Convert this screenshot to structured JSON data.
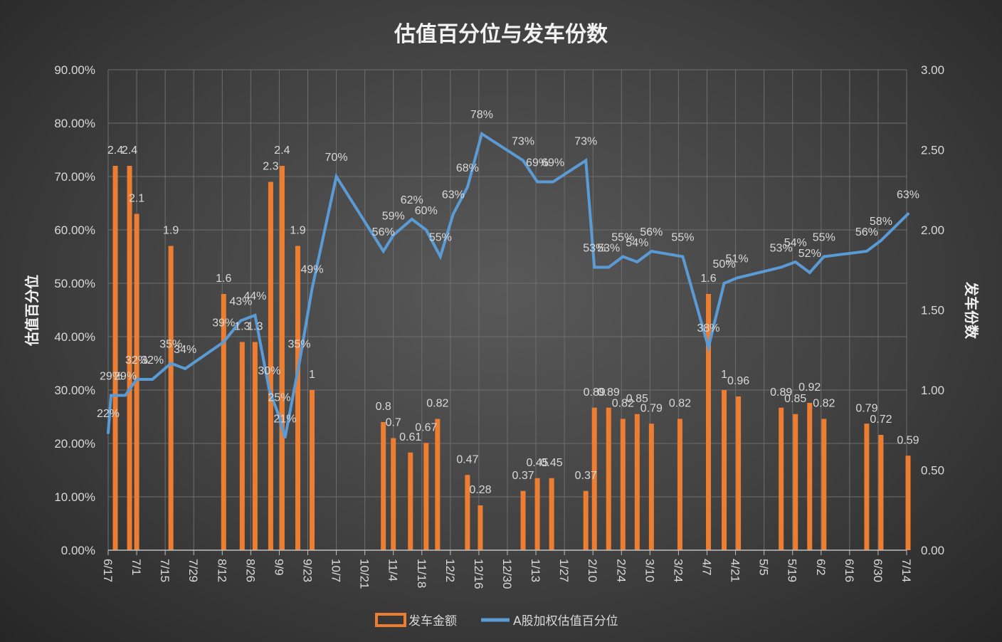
{
  "colors": {
    "bar": "#ED7D31",
    "line": "#5B9BD5",
    "text": "#D9D9D9",
    "grid": "#6E6E6E"
  },
  "chart_data": {
    "type": "bar",
    "title": "估值百分位与发车份数",
    "ylabel": "估值百分位",
    "y2label": "发车份数",
    "ylim": [
      0,
      0.9
    ],
    "y2lim": [
      0,
      3
    ],
    "y_ticks": [
      "0.00%",
      "10.00%",
      "20.00%",
      "30.00%",
      "40.00%",
      "50.00%",
      "60.00%",
      "70.00%",
      "80.00%",
      "90.00%"
    ],
    "y2_ticks": [
      "0.00",
      "0.50",
      "1.00",
      "1.50",
      "2.00",
      "2.50",
      "3.00"
    ],
    "x_ticks": [
      "6/17",
      "7/1",
      "7/15",
      "7/29",
      "8/12",
      "8/26",
      "9/9",
      "9/23",
      "10/7",
      "10/21",
      "11/4",
      "11/18",
      "12/2",
      "12/16",
      "12/30",
      "1/13",
      "1/27",
      "2/10",
      "2/24",
      "3/10",
      "3/24",
      "4/7",
      "4/21",
      "5/5",
      "5/19",
      "6/2",
      "6/16",
      "6/30",
      "7/14"
    ],
    "grid": true,
    "legend_position": "bottom",
    "series": [
      {
        "name": "发车金额",
        "type": "bar",
        "axis": "right",
        "points": [
          {
            "x": 0.25,
            "value": 2.4,
            "label": "2.4"
          },
          {
            "x": 0.75,
            "value": 2.4,
            "label": "2.4"
          },
          {
            "x": 1.0,
            "value": 2.1,
            "label": "2.1"
          },
          {
            "x": 2.2,
            "value": 1.9,
            "label": "1.9"
          },
          {
            "x": 4.05,
            "value": 1.6,
            "label": "1.6"
          },
          {
            "x": 4.7,
            "value": 1.3,
            "label": "1.3"
          },
          {
            "x": 5.15,
            "value": 1.3,
            "label": "1.3"
          },
          {
            "x": 5.7,
            "value": 2.3,
            "label": "2.3"
          },
          {
            "x": 6.1,
            "value": 2.4,
            "label": "2.4"
          },
          {
            "x": 6.65,
            "value": 1.9,
            "label": "1.9"
          },
          {
            "x": 7.15,
            "value": 1.0,
            "label": "1"
          },
          {
            "x": 9.65,
            "value": 0.8,
            "label": "0.8"
          },
          {
            "x": 10.0,
            "value": 0.7,
            "label": "0.7"
          },
          {
            "x": 10.6,
            "value": 0.61,
            "label": "0.61"
          },
          {
            "x": 11.15,
            "value": 0.67,
            "label": "0.67"
          },
          {
            "x": 11.55,
            "value": 0.82,
            "label": "0.82"
          },
          {
            "x": 12.6,
            "value": 0.47,
            "label": "0.47"
          },
          {
            "x": 13.05,
            "value": 0.28,
            "label": "0.28"
          },
          {
            "x": 14.55,
            "value": 0.37,
            "label": "0.37"
          },
          {
            "x": 15.05,
            "value": 0.45,
            "label": "0.45"
          },
          {
            "x": 15.55,
            "value": 0.45,
            "label": "0.45"
          },
          {
            "x": 16.75,
            "value": 0.37,
            "label": "0.37"
          },
          {
            "x": 17.05,
            "value": 0.89,
            "label": "0.89"
          },
          {
            "x": 17.55,
            "value": 0.89,
            "label": "0.89"
          },
          {
            "x": 18.05,
            "value": 0.82,
            "label": "0.82"
          },
          {
            "x": 18.55,
            "value": 0.85,
            "label": "0.85"
          },
          {
            "x": 19.05,
            "value": 0.79,
            "label": "0.79"
          },
          {
            "x": 20.05,
            "value": 0.82,
            "label": "0.82"
          },
          {
            "x": 21.05,
            "value": 1.6,
            "label": "1.6"
          },
          {
            "x": 21.6,
            "value": 1.0,
            "label": "1"
          },
          {
            "x": 22.1,
            "value": 0.96,
            "label": "0.96"
          },
          {
            "x": 23.6,
            "value": 0.89,
            "label": "0.89"
          },
          {
            "x": 24.1,
            "value": 0.85,
            "label": "0.85"
          },
          {
            "x": 24.6,
            "value": 0.92,
            "label": "0.92"
          },
          {
            "x": 25.1,
            "value": 0.82,
            "label": "0.82"
          },
          {
            "x": 26.6,
            "value": 0.79,
            "label": "0.79"
          },
          {
            "x": 27.1,
            "value": 0.72,
            "label": "0.72"
          },
          {
            "x": 28.05,
            "value": 0.59,
            "label": "0.59"
          }
        ]
      },
      {
        "name": "A股加权估值百分位",
        "type": "line",
        "axis": "left",
        "points": [
          {
            "x": 0.0,
            "value": 0.22,
            "label": "22%"
          },
          {
            "x": 0.1,
            "value": 0.29,
            "label": "29%"
          },
          {
            "x": 0.6,
            "value": 0.29,
            "label": "29%"
          },
          {
            "x": 1.0,
            "value": 0.32,
            "label": "32%"
          },
          {
            "x": 1.55,
            "value": 0.32,
            "label": "32%"
          },
          {
            "x": 2.2,
            "value": 0.35,
            "label": "35%"
          },
          {
            "x": 2.7,
            "value": 0.34,
            "label": "34%"
          },
          {
            "x": 4.05,
            "value": 0.39,
            "label": "39%"
          },
          {
            "x": 4.65,
            "value": 0.43,
            "label": "43%"
          },
          {
            "x": 5.15,
            "value": 0.44,
            "label": "44%"
          },
          {
            "x": 5.65,
            "value": 0.3,
            "label": "30%"
          },
          {
            "x": 6.0,
            "value": 0.25,
            "label": "25%"
          },
          {
            "x": 6.2,
            "value": 0.21,
            "label": "21%"
          },
          {
            "x": 6.7,
            "value": 0.35,
            "label": "35%"
          },
          {
            "x": 7.15,
            "value": 0.49,
            "label": "49%"
          },
          {
            "x": 8.0,
            "value": 0.7,
            "label": "70%"
          },
          {
            "x": 9.65,
            "value": 0.56,
            "label": "56%"
          },
          {
            "x": 10.0,
            "value": 0.59,
            "label": "59%"
          },
          {
            "x": 10.65,
            "value": 0.62,
            "label": "62%"
          },
          {
            "x": 11.15,
            "value": 0.6,
            "label": "60%"
          },
          {
            "x": 11.65,
            "value": 0.55,
            "label": "55%"
          },
          {
            "x": 12.1,
            "value": 0.63,
            "label": "63%"
          },
          {
            "x": 12.6,
            "value": 0.68,
            "label": "68%"
          },
          {
            "x": 13.1,
            "value": 0.78,
            "label": "78%"
          },
          {
            "x": 14.55,
            "value": 0.73,
            "label": "73%"
          },
          {
            "x": 15.05,
            "value": 0.69,
            "label": "69%"
          },
          {
            "x": 15.6,
            "value": 0.69,
            "label": "69%"
          },
          {
            "x": 16.75,
            "value": 0.73,
            "label": "73%"
          },
          {
            "x": 17.05,
            "value": 0.53,
            "label": "53%"
          },
          {
            "x": 17.55,
            "value": 0.53,
            "label": "53%"
          },
          {
            "x": 18.05,
            "value": 0.55,
            "label": "55%"
          },
          {
            "x": 18.55,
            "value": 0.54,
            "label": "54%"
          },
          {
            "x": 19.05,
            "value": 0.56,
            "label": "56%"
          },
          {
            "x": 20.15,
            "value": 0.55,
            "label": "55%"
          },
          {
            "x": 21.05,
            "value": 0.38,
            "label": "38%"
          },
          {
            "x": 21.6,
            "value": 0.5,
            "label": "50%"
          },
          {
            "x": 22.05,
            "value": 0.51,
            "label": "51%"
          },
          {
            "x": 23.6,
            "value": 0.53,
            "label": "53%"
          },
          {
            "x": 24.1,
            "value": 0.54,
            "label": "54%"
          },
          {
            "x": 24.6,
            "value": 0.52,
            "label": "52%"
          },
          {
            "x": 25.1,
            "value": 0.55,
            "label": "55%"
          },
          {
            "x": 26.6,
            "value": 0.56,
            "label": "56%"
          },
          {
            "x": 27.1,
            "value": 0.58,
            "label": "58%"
          },
          {
            "x": 28.05,
            "value": 0.63,
            "label": "63%"
          }
        ]
      }
    ]
  }
}
